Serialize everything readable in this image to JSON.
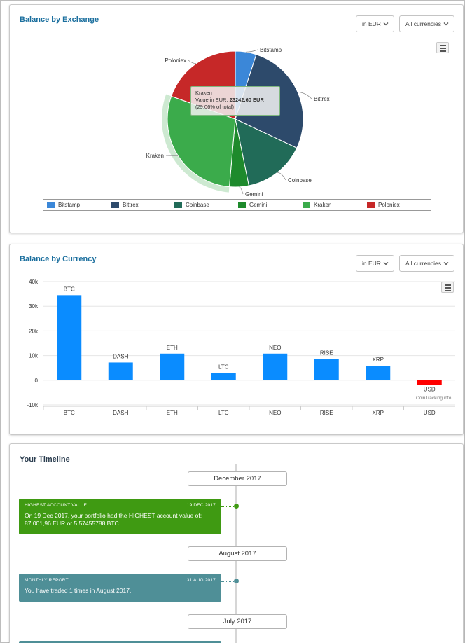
{
  "exchange_panel": {
    "title": "Balance by Exchange",
    "currency_select": "in EUR",
    "filter_select": "All currencies",
    "tooltip": {
      "name": "Kraken",
      "value_label": "Value in EUR:",
      "value": "23242.60 EUR",
      "share": "(29.06% of total)"
    }
  },
  "currency_panel": {
    "title": "Balance by Currency",
    "currency_select": "in EUR",
    "filter_select": "All currencies",
    "watermark": "CoinTracking.info"
  },
  "timeline": {
    "title": "Your Timeline",
    "months": [
      "December 2017",
      "August 2017",
      "July 2017"
    ],
    "events": [
      {
        "type": "HIGHEST ACCOUNT VALUE",
        "date": "19 DEC 2017",
        "text": "On 19 Dec 2017, your portfolio had the HIGHEST account value of: 87.001,96 EUR or 5,57455788 BTC.",
        "color": "#3f9a12"
      },
      {
        "type": "MONTHLY REPORT",
        "date": "31 AUG 2017",
        "text": "You have traded 1 times in August 2017.",
        "color": "#4f8f97"
      }
    ]
  },
  "chart_data": [
    {
      "type": "pie",
      "title": "Balance by Exchange",
      "legend_position": "bottom",
      "series": [
        {
          "name": "Bitstamp",
          "value": 5.0,
          "color": "#3b87d8"
        },
        {
          "name": "Bittrex",
          "value": 27.0,
          "color": "#2d4a6b"
        },
        {
          "name": "Coinbase",
          "value": 14.8,
          "color": "#216b58"
        },
        {
          "name": "Gemini",
          "value": 4.6,
          "color": "#1e8a2c"
        },
        {
          "name": "Kraken",
          "value": 29.06,
          "color": "#3bab4b"
        },
        {
          "name": "Poloniex",
          "value": 19.54,
          "color": "#c62828"
        }
      ]
    },
    {
      "type": "bar",
      "title": "Balance by Currency",
      "categories": [
        "BTC",
        "DASH",
        "ETH",
        "LTC",
        "NEO",
        "RISE",
        "XRP",
        "USD"
      ],
      "values": [
        34500,
        7200,
        10800,
        2900,
        10800,
        8600,
        5900,
        -1900
      ],
      "colors": [
        "#0a8cff",
        "#0a8cff",
        "#0a8cff",
        "#0a8cff",
        "#0a8cff",
        "#0a8cff",
        "#0a8cff",
        "#ff0000"
      ],
      "yticks": [
        "40k",
        "30k",
        "20k",
        "10k",
        "0",
        "-10k"
      ],
      "ylim": [
        -10000,
        40000
      ],
      "grid": true
    }
  ]
}
